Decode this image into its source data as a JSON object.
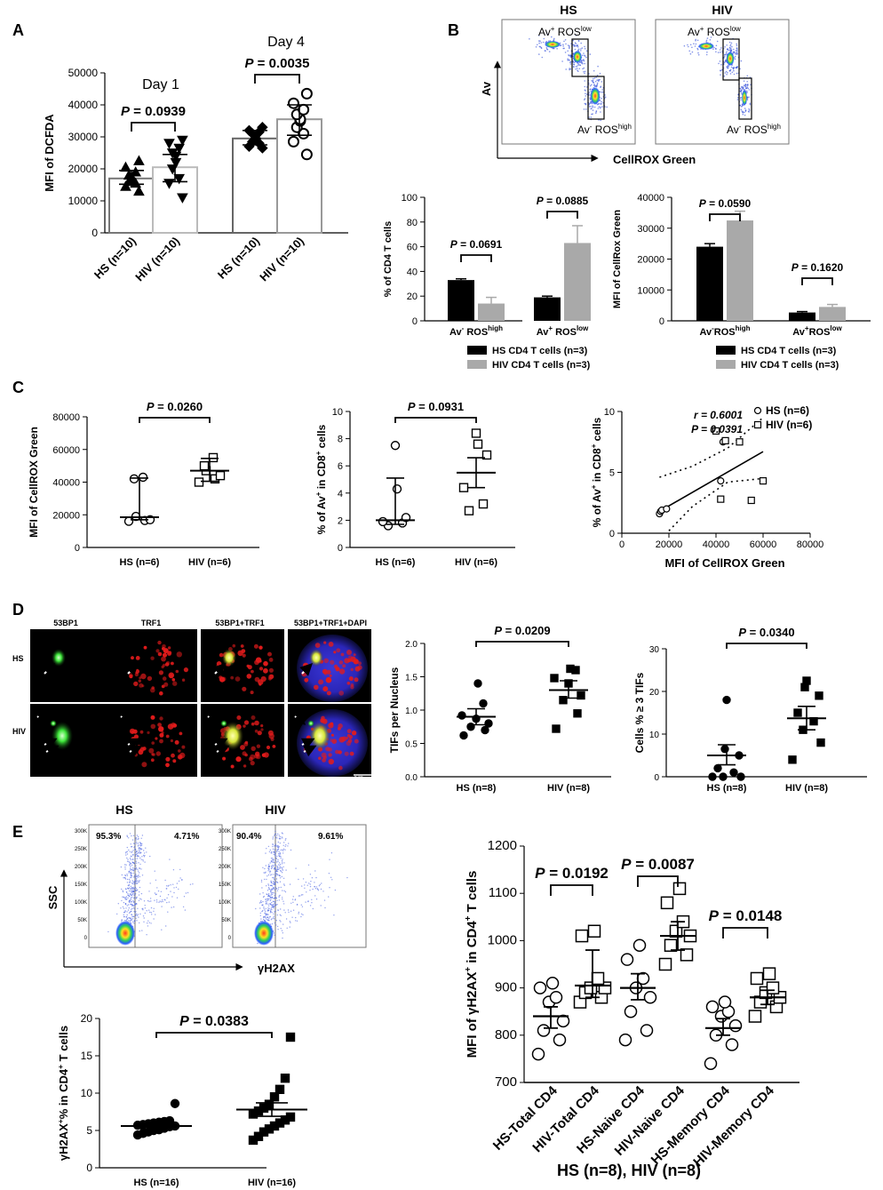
{
  "panel_labels": [
    "A",
    "B",
    "C",
    "D",
    "E"
  ],
  "chart_data": [
    {
      "id": "A",
      "type": "bar",
      "ylabel": "MFI of DCFDA",
      "ylim": [
        0,
        50000
      ],
      "yticks": [
        "0",
        "10000",
        "20000",
        "30000",
        "40000",
        "50000"
      ],
      "categories": [
        "HS (n=10)",
        "HIV (n=10)",
        "HS (n=10)",
        "HIV (n=10)"
      ],
      "values": [
        17000,
        20500,
        29500,
        35500
      ],
      "errors": [
        [
          15200,
          19500
        ],
        [
          16000,
          24500
        ],
        [
          27500,
          32000
        ],
        [
          30500,
          40000
        ]
      ],
      "points": [
        [
          13000,
          14500,
          15500,
          16000,
          16500,
          17000,
          18000,
          19000,
          20500,
          22500
        ],
        [
          11000,
          15500,
          17000,
          20000,
          22000,
          24000,
          25000,
          26500,
          28000,
          29000
        ],
        [
          26500,
          27000,
          28000,
          28500,
          29500,
          30500,
          31000,
          31500,
          32000,
          33000
        ],
        [
          24500,
          28500,
          31000,
          33000,
          35000,
          35500,
          37000,
          38500,
          40500,
          43500
        ]
      ],
      "group_labels": [
        "Day 1",
        "Day 4"
      ],
      "pvalues": [
        "P = 0.0939",
        "P = 0.0035"
      ]
    },
    {
      "id": "B1",
      "type": "bar",
      "ylabel": "% of CD4 T cells",
      "ylim": [
        0,
        100
      ],
      "yticks": [
        "0",
        "20",
        "40",
        "60",
        "80",
        "100"
      ],
      "categories": [
        "Av− ROShigh",
        "Av+ ROSlow"
      ],
      "cat_main": [
        "Av",
        "Av"
      ],
      "cat_sup1": [
        "-",
        "+"
      ],
      "cat_mid": [
        " ROS",
        " ROS"
      ],
      "cat_sup2": [
        "high",
        "low"
      ],
      "series": [
        {
          "name": "HS CD4 T cells (n=3)",
          "values": [
            33,
            19
          ],
          "err": [
            1,
            1
          ]
        },
        {
          "name": "HIV CD4 T cells (n=3)",
          "values": [
            14,
            63
          ],
          "err": [
            5,
            14
          ]
        }
      ],
      "pvalues": [
        "P = 0.0691",
        "P = 0.0885"
      ]
    },
    {
      "id": "B2",
      "type": "bar",
      "ylabel": "MFI of CellRox Green",
      "ylim": [
        0,
        40000
      ],
      "yticks": [
        "0",
        "10000",
        "20000",
        "30000",
        "40000"
      ],
      "categories": [
        "Av−ROShigh",
        "Av+ROSlow"
      ],
      "cat_main": [
        "Av",
        "Av"
      ],
      "cat_sup1": [
        "-",
        "+"
      ],
      "cat_mid": [
        "ROS",
        "ROS"
      ],
      "cat_sup2": [
        "high",
        "low"
      ],
      "series": [
        {
          "name": "HS CD4 T cells (n=3)",
          "values": [
            24000,
            2700
          ],
          "err": [
            1000,
            300
          ]
        },
        {
          "name": "HIV CD4 T cells (n=3)",
          "values": [
            32500,
            4500
          ],
          "err": [
            3000,
            800
          ]
        }
      ],
      "pvalues": [
        "P = 0.0590",
        "P = 0.1620"
      ]
    },
    {
      "id": "C1",
      "type": "scatter",
      "ylabel": "MFI of CellROX Green",
      "ylim": [
        0,
        80000
      ],
      "yticks": [
        "0",
        "20000",
        "40000",
        "60000",
        "80000"
      ],
      "categories": [
        "HS (n=6)",
        "HIV (n=6)"
      ],
      "points": [
        [
          16000,
          16500,
          17000,
          19000,
          42000,
          43000
        ],
        [
          40000,
          42000,
          44000,
          47000,
          50000,
          55000
        ]
      ],
      "center": [
        18500,
        47000
      ],
      "err": [
        [
          17000,
          42500
        ],
        [
          40500,
          54500
        ]
      ],
      "pvalues": [
        "P = 0.0260"
      ]
    },
    {
      "id": "C2",
      "type": "scatter",
      "ylabel": "% of Av+ in CD8+ cells",
      "ylim": [
        0,
        10
      ],
      "yticks": [
        "0",
        "2",
        "4",
        "6",
        "8",
        "10"
      ],
      "categories": [
        "HS (n=6)",
        "HIV (n=6)"
      ],
      "points": [
        [
          1.6,
          1.8,
          1.9,
          2.2,
          4.3,
          7.5
        ],
        [
          2.7,
          3.2,
          4.4,
          6.8,
          7.6,
          8.4
        ]
      ],
      "center": [
        2.0,
        5.5
      ],
      "err": [
        [
          1.7,
          5.1
        ],
        [
          4.4,
          6.6
        ]
      ],
      "pvalues": [
        "P = 0.0931"
      ]
    },
    {
      "id": "C3",
      "type": "scatter",
      "xlabel": "MFI of CellROX Green",
      "ylabel": "% of Av+ in CD8+ cells",
      "xlim": [
        0,
        80000
      ],
      "ylim": [
        0,
        10
      ],
      "xticks": [
        "0",
        "20000",
        "40000",
        "60000",
        "80000"
      ],
      "yticks": [
        "0",
        "5",
        "10"
      ],
      "series": [
        {
          "name": "HS (n=6)",
          "points": [
            [
              16000,
              1.6
            ],
            [
              16500,
              1.8
            ],
            [
              17000,
              1.9
            ],
            [
              19000,
              2.0
            ],
            [
              42000,
              4.3
            ],
            [
              43000,
              7.5
            ]
          ]
        },
        {
          "name": "HIV (n=6)",
          "points": [
            [
              40000,
              8.4
            ],
            [
              44000,
              7.6
            ],
            [
              50000,
              7.5
            ],
            [
              42000,
              2.8
            ],
            [
              55000,
              2.7
            ],
            [
              60000,
              4.3
            ]
          ]
        }
      ],
      "regression": {
        "x": [
          16000,
          60000
        ],
        "y": [
          1.8,
          6.7
        ]
      },
      "ci_upper": {
        "x": [
          16000,
          30000,
          45000,
          60000
        ],
        "y": [
          4.6,
          5.5,
          7.0,
          9.5
        ]
      },
      "ci_lower": {
        "x": [
          20000,
          30000,
          45000,
          60000
        ],
        "y": [
          0.2,
          2.2,
          4.2,
          4.5
        ]
      },
      "stats": [
        "r = 0.6001",
        "P = 0.0391"
      ]
    },
    {
      "id": "D1",
      "type": "scatter",
      "ylabel": "TIFs per Nucleus",
      "ylim": [
        0,
        2.0
      ],
      "yticks": [
        "0.0",
        "0.5",
        "1.0",
        "1.5",
        "2.0"
      ],
      "categories": [
        "HS (n=8)",
        "HIV (n=8)"
      ],
      "points": [
        [
          0.62,
          0.7,
          0.75,
          0.8,
          0.87,
          0.92,
          1.1,
          1.4
        ],
        [
          0.72,
          0.95,
          1.15,
          1.22,
          1.4,
          1.48,
          1.6,
          1.62
        ]
      ],
      "center": [
        0.9,
        1.3
      ],
      "err": [
        [
          0.78,
          1.02
        ],
        [
          1.18,
          1.44
        ]
      ],
      "pvalues": [
        "P = 0.0209"
      ]
    },
    {
      "id": "D2",
      "type": "scatter",
      "ylabel": "Cells % ≥ 3 TIFs",
      "ylim": [
        0,
        30
      ],
      "yticks": [
        "0",
        "10",
        "20",
        "30"
      ],
      "categories": [
        "HS (n=8)",
        "HIV (n=8)"
      ],
      "points": [
        [
          0,
          0,
          0,
          1,
          2,
          5,
          6.5,
          18
        ],
        [
          4,
          8,
          11,
          13,
          15,
          19,
          21,
          22.5
        ]
      ],
      "center": [
        5.0,
        13.7
      ],
      "err": [
        [
          2.8,
          7.5
        ],
        [
          11.0,
          16.5
        ]
      ],
      "pvalues": [
        "P = 0.0340"
      ]
    },
    {
      "id": "E1",
      "type": "scatter",
      "ylabel": "γH2AX+% in CD4+ T cells",
      "ylim": [
        0,
        20
      ],
      "yticks": [
        "0",
        "5",
        "10",
        "15",
        "20"
      ],
      "categories": [
        "HS (n=16)",
        "HIV (n=16)"
      ],
      "points": [
        [
          4.4,
          4.6,
          4.8,
          5.0,
          5.1,
          5.3,
          5.5,
          5.6,
          5.7,
          5.8,
          5.9,
          6.0,
          6.1,
          6.2,
          6.3,
          8.6
        ],
        [
          3.7,
          4.2,
          4.8,
          5.2,
          5.6,
          6.0,
          6.4,
          6.8,
          7.2,
          7.6,
          8.0,
          8.5,
          9.5,
          10.5,
          12.0,
          17.5
        ]
      ],
      "center": [
        5.6,
        7.8
      ],
      "err": [
        [
          5.2,
          6.0
        ],
        [
          6.9,
          8.7
        ]
      ],
      "pvalues": [
        "P = 0.0383"
      ]
    },
    {
      "id": "E2",
      "type": "scatter",
      "ylabel": "MFI of γH2AX+ in CD4+ T cells",
      "xlabel": "HS (n=8), HIV (n=8)",
      "ylim": [
        700,
        1200
      ],
      "yticks": [
        "700",
        "800",
        "900",
        "1000",
        "1100",
        "1200"
      ],
      "categories": [
        "HS-Total CD4",
        "HIV-Total CD4",
        "HS-Naive CD4",
        "HIV-Naive CD4",
        "HS-Memory CD4",
        "HIV-Memory CD4"
      ],
      "filled": [
        false,
        false,
        false,
        false,
        false,
        false
      ],
      "shapes": [
        "circle",
        "square",
        "circle",
        "square",
        "circle",
        "square"
      ],
      "points": [
        [
          760,
          790,
          810,
          830,
          870,
          880,
          900,
          910
        ],
        [
          870,
          880,
          890,
          900,
          900,
          920,
          1010,
          1020
        ],
        [
          790,
          810,
          850,
          880,
          900,
          920,
          960,
          990
        ],
        [
          950,
          970,
          990,
          1010,
          1020,
          1040,
          1080,
          1110
        ],
        [
          740,
          780,
          800,
          820,
          840,
          850,
          860,
          870
        ],
        [
          840,
          860,
          870,
          880,
          890,
          900,
          920,
          930
        ]
      ],
      "center": [
        840,
        905,
        900,
        1010,
        815,
        880
      ],
      "err": [
        [
          815,
          860
        ],
        [
          880,
          980
        ],
        [
          875,
          930
        ],
        [
          980,
          1040
        ],
        [
          800,
          835
        ],
        [
          865,
          895
        ]
      ],
      "pvalues": [
        "P = 0.0192",
        "P = 0.0087",
        "P = 0.0148"
      ]
    }
  ],
  "flow": {
    "B_titles": [
      "HS",
      "HIV"
    ],
    "B_gate_top_main": "Av",
    "B_gate_top_sup1": "+",
    "B_gate_top_mid": " ROS",
    "B_gate_top_sup2": "low",
    "B_gate_bottom_main": "Av",
    "B_gate_bottom_sup1": "-",
    "B_gate_bottom_mid": " ROS",
    "B_gate_bottom_sup2": "high",
    "B_yaxis": "Av",
    "B_xaxis": "CellROX Green",
    "E_titles": [
      "HS",
      "HIV"
    ],
    "E_quadrants": [
      [
        "95.3%",
        "4.71%"
      ],
      [
        "90.4%",
        "9.61%"
      ]
    ],
    "E_yaxis": "SSC",
    "E_xaxis": "γH2AX",
    "E_yticks": [
      "300K",
      "250K",
      "200K",
      "150K",
      "100K",
      "50K",
      "0"
    ]
  },
  "microscopy": {
    "columns": [
      "53BP1",
      "TRF1",
      "53BP1+TRF1",
      "53BP1+TRF1+DAPI"
    ],
    "rows": [
      "HS",
      "HIV"
    ],
    "scalebar": "2.00 µm"
  }
}
